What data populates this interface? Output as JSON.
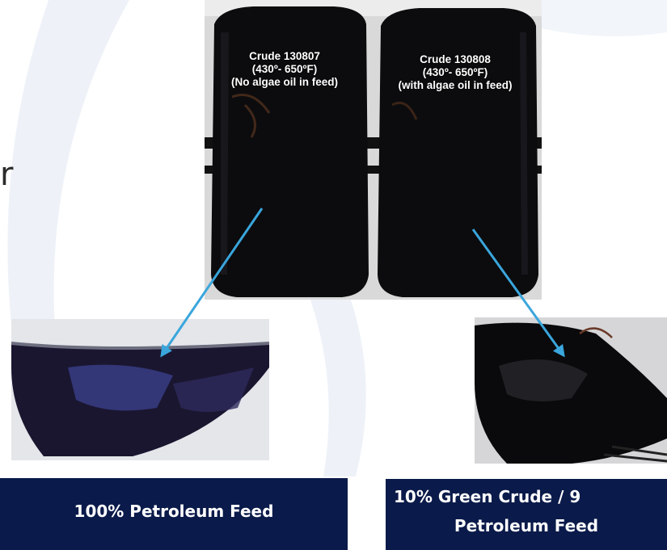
{
  "bottles": {
    "left": {
      "name": "Crude 130807",
      "range": "(430º- 650ºF)",
      "note": "(No algae oil in feed)"
    },
    "right": {
      "name": "Crude 130808",
      "range": "(430º- 650ºF)",
      "note": "(with algae oil in feed)"
    }
  },
  "captions": {
    "left": "100% Petroleum Feed",
    "right_line1": "10% Green Crude / 9",
    "right_line2": "Petroleum Feed"
  },
  "partial_text": "r",
  "colors": {
    "caption_bg": "#0a1a4a",
    "arrow": "#3aa6dc",
    "oil": "#0b0b10"
  }
}
